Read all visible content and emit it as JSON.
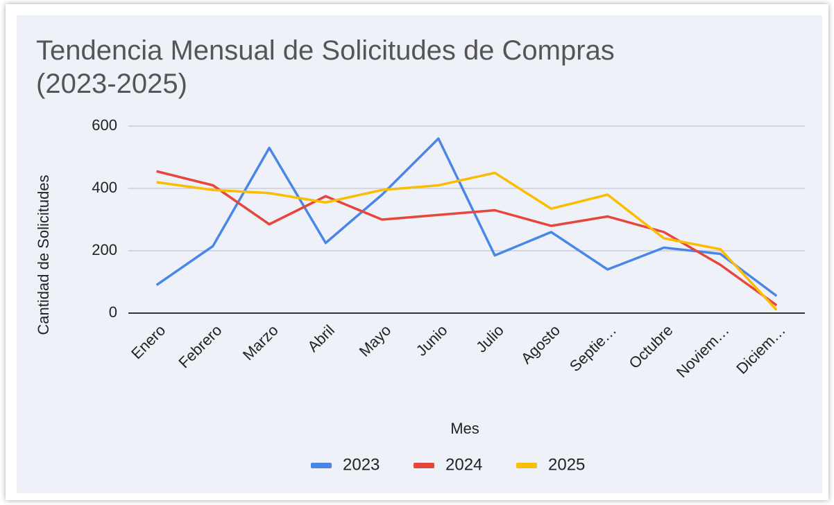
{
  "chart_data": {
    "type": "line",
    "title": [
      "Tendencia Mensual de Solicitudes de Compras",
      "(2023-2025)"
    ],
    "x_label": "Mes",
    "y_label": "Cantidad de Solicitudes",
    "categories": [
      "Enero",
      "Febrero",
      "Marzo",
      "Abril",
      "Mayo",
      "Junio",
      "Julio",
      "Agosto",
      "Septie…",
      "Octubre",
      "Noviem…",
      "Diciem…"
    ],
    "series": [
      {
        "name": "2023",
        "color": "#4a86e8",
        "values": [
          90,
          215,
          530,
          225,
          380,
          560,
          185,
          260,
          140,
          210,
          190,
          55
        ]
      },
      {
        "name": "2024",
        "color": "#e8453c",
        "values": [
          455,
          410,
          285,
          375,
          300,
          315,
          330,
          280,
          310,
          260,
          155,
          25
        ]
      },
      {
        "name": "2025",
        "color": "#fbbc04",
        "values": [
          420,
          395,
          385,
          355,
          395,
          410,
          450,
          335,
          380,
          240,
          205,
          10
        ]
      }
    ],
    "ylim": [
      0,
      600
    ],
    "yticks": [
      0,
      200,
      400,
      600
    ],
    "grid": true,
    "legend": "bottom"
  }
}
